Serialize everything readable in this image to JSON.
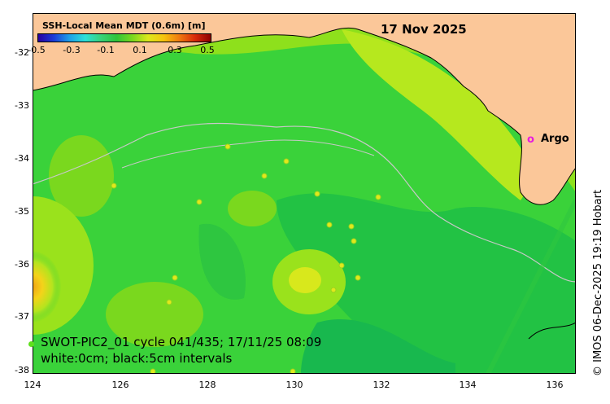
{
  "date": "17 Nov 2025",
  "colorbar": {
    "title": "SSH-Local Mean MDT (0.6m) [m]",
    "ticks": [
      "-0.5",
      "-0.3",
      "-0.1",
      "0.1",
      "0.3",
      "0.5"
    ]
  },
  "axes": {
    "x_ticks": [
      "124",
      "126",
      "128",
      "130",
      "132",
      "134",
      "136"
    ],
    "y_ticks": [
      "-32",
      "-33",
      "-34",
      "-35",
      "-36",
      "-37",
      "-38"
    ]
  },
  "legend": {
    "argo_marker": "o",
    "argo_label": "Argo"
  },
  "caption": {
    "line1": "SWOT-PIC2_01 cycle 041/435; 17/11/25 08:09",
    "line2": "white:0cm; black:5cm intervals"
  },
  "credit": "© IMOS 06-Dec-2025 19:19 Hobart",
  "colors": {
    "land": "#fbc799",
    "ocean_base": "#3ad23a",
    "high_ssh": "#c8ec1e",
    "peak_ssh": "#f0a418",
    "low_ssh": "#18b84e",
    "argo": "#e61bdf"
  }
}
